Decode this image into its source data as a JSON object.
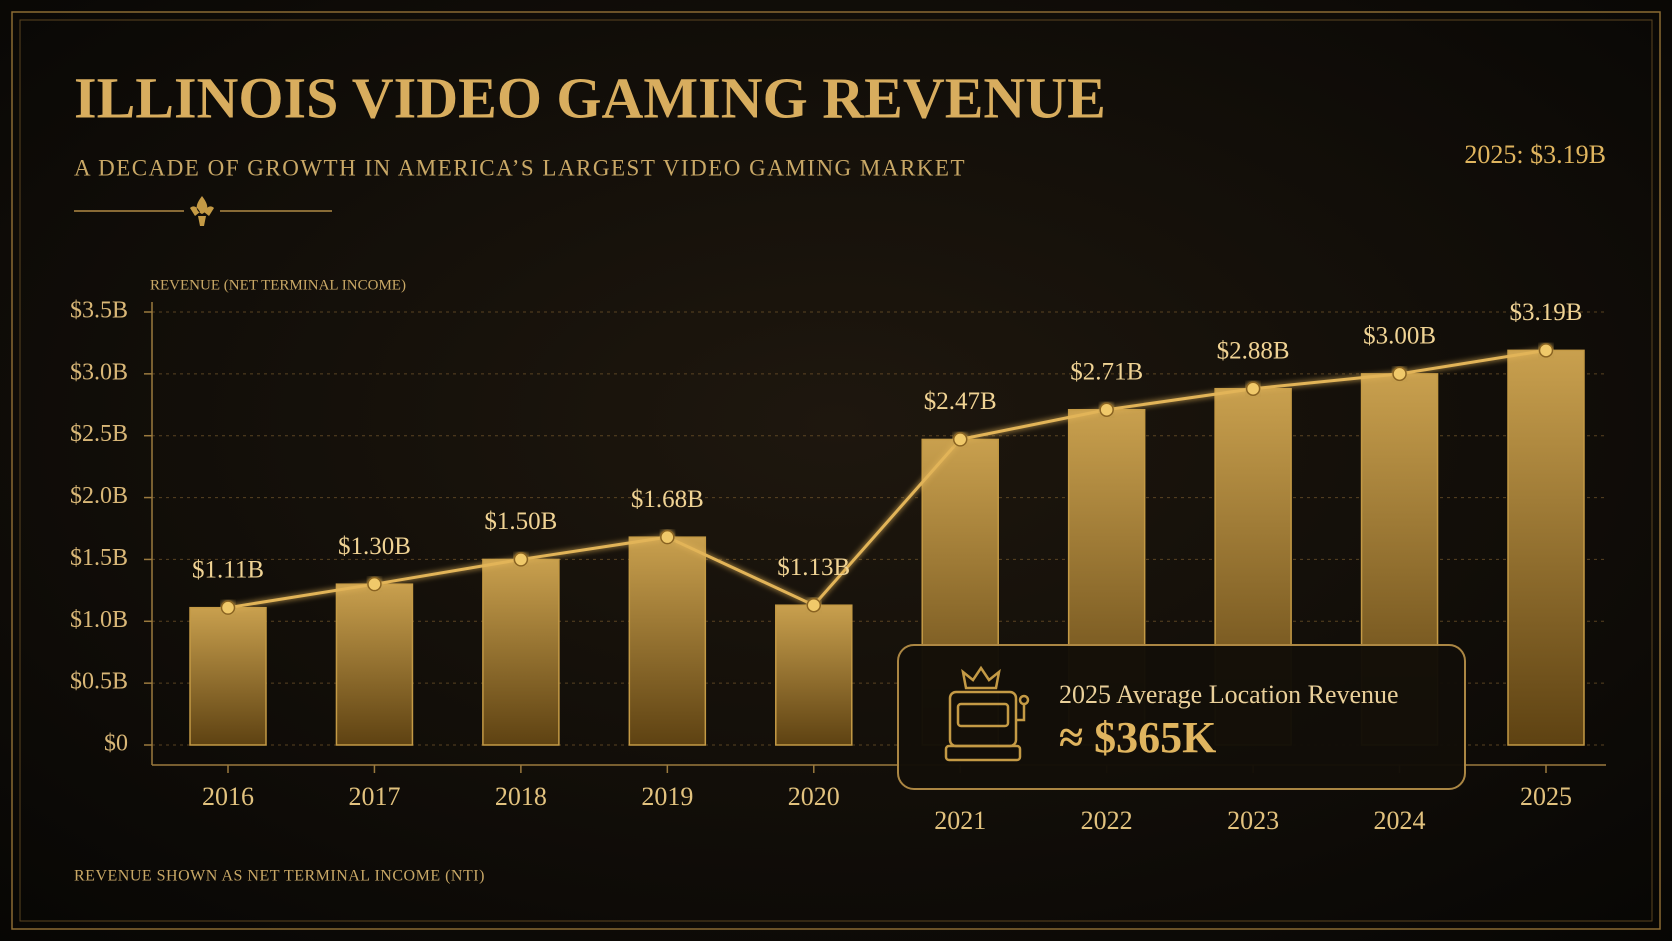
{
  "chart_data": {
    "type": "bar",
    "title": "ILLINOIS VIDEO GAMING REVENUE",
    "subtitle": "A DECADE OF GROWTH IN AMERICA’S LARGEST VIDEO GAMING MARKET",
    "y_label": "REVENUE (NET TERMINAL INCOME)",
    "note": "REVENUE SHOWN AS NET TERMINAL INCOME (NTI)",
    "annotation": "2025: $3.19B",
    "categories": [
      "2016",
      "2017",
      "2018",
      "2019",
      "2020",
      "2021",
      "2022",
      "2023",
      "2024",
      "2025"
    ],
    "values": [
      1.11,
      1.3,
      1.5,
      1.68,
      1.13,
      2.47,
      2.71,
      2.88,
      3.0,
      3.19
    ],
    "value_labels": [
      "$1.11B",
      "$1.30B",
      "$1.50B",
      "$1.68B",
      "$1.13B",
      "$2.47B",
      "$2.71B",
      "$2.88B",
      "$3.00B",
      "$3.19B"
    ],
    "color": "#c49a45",
    "line": true,
    "line_color": "#e2b458",
    "ylim": [
      0,
      3.5
    ],
    "yticks": [
      {
        "value": 0,
        "label": "$0"
      },
      {
        "value": 0.5,
        "label": "$0.5B"
      },
      {
        "value": 1.0,
        "label": "$1.0B"
      },
      {
        "value": 1.5,
        "label": "$1.5B"
      },
      {
        "value": 2.0,
        "label": "$2.0B"
      },
      {
        "value": 2.5,
        "label": "$2.5B"
      },
      {
        "value": 3.0,
        "label": "$3.0B"
      },
      {
        "value": 3.5,
        "label": "$3.5B"
      }
    ],
    "grid": true,
    "callout": {
      "title": "2025 Average Location Revenue",
      "value": "≈ $365K"
    }
  }
}
